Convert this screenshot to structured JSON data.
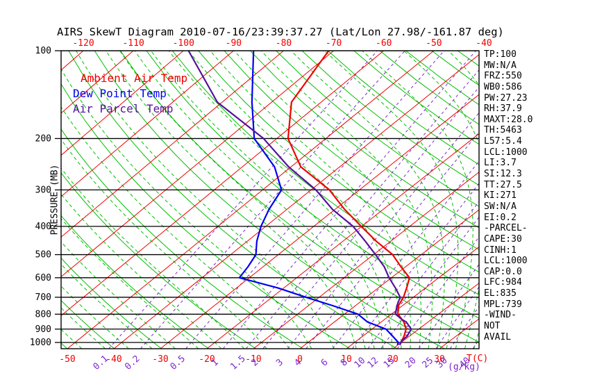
{
  "title": "AIRS SkewT Diagram 2010-07-16/23:39:37.27 (Lat/Lon 27.98/-161.87 deg)",
  "legend": [
    {
      "label": "Ambient Air Temp",
      "color": "#f00000"
    },
    {
      "label": "Dew Point Temp",
      "color": "#0000f0"
    },
    {
      "label": "Air Parcel Temp",
      "color": "#55129b"
    }
  ],
  "axes": {
    "pressure_label": "PRESSURE (MB)",
    "temp_unit": "T(C)",
    "mixing_unit": "(g/kg)",
    "pressure_ticks": [
      100,
      200,
      300,
      400,
      500,
      600,
      700,
      800,
      900,
      1000
    ],
    "top_temp_ticks": [
      -120,
      -110,
      -100,
      -90,
      -80,
      -70,
      -60,
      -50,
      -40
    ],
    "bottom_temp_ticks": [
      -50,
      -40,
      -30,
      -20,
      -10,
      0,
      10,
      20,
      30
    ],
    "mixing_ratio_labels": [
      "0.1",
      "0.2",
      "0.5",
      "1",
      "1.5",
      "2",
      "3",
      "4",
      "6",
      "8",
      "10",
      "12",
      "15",
      "20",
      "25",
      "30",
      "40"
    ]
  },
  "indices": [
    "TP:100",
    "MW:N/A",
    "FRZ:550",
    "WB0:586",
    "PW:27.23",
    "RH:37.9",
    "MAXT:28.0",
    "TH:5463",
    "L57:5.4",
    "LCL:1000",
    "LI:3.7",
    "SI:12.3",
    "TT:27.5",
    "KI:271",
    "SW:N/A",
    "EI:0.2",
    "-PARCEL-",
    "CAPE:30",
    "CINH:1",
    "LCL:1000",
    "CAP:0.0",
    "LFC:984",
    "EL:835",
    "MPL:739",
    "-WIND-",
    "NOT",
    "AVAIL"
  ],
  "chart_data": {
    "type": "line",
    "title": "AIRS SkewT Diagram 2010-07-16/23:39:37.27 (Lat/Lon 27.98/-161.87 deg)",
    "xlabel": "T(C)",
    "ylabel": "PRESSURE (MB)",
    "y_scale": "log-pressure, inverted (skew-T)",
    "y_range_mb": [
      100,
      1050
    ],
    "x_bottom_range_c": [
      -50,
      30
    ],
    "x_top_range_c": [
      -120,
      -40
    ],
    "isotherm_step_c": 10,
    "dry_adiabats_theta_k": {
      "min": 220,
      "max": 450,
      "step": 10
    },
    "moist_adiabats_thetaw_c": [
      -50,
      -45,
      -40,
      -35,
      -30,
      -25,
      -20,
      -15,
      -10,
      -5,
      0,
      5,
      10,
      12,
      14,
      16,
      18,
      20,
      22,
      24,
      26,
      28,
      30,
      32,
      34,
      36
    ],
    "mixing_ratio_lines_gkg": [
      0.1,
      0.2,
      0.5,
      1,
      1.5,
      2,
      3,
      4,
      6,
      8,
      10,
      12,
      15,
      20,
      25,
      30,
      40
    ],
    "series": [
      {
        "name": "Ambient Air Temp",
        "color": "#f00000",
        "points": [
          [
            100,
            -71
          ],
          [
            150,
            -66
          ],
          [
            200,
            -57.7
          ],
          [
            250,
            -48
          ],
          [
            300,
            -36.2
          ],
          [
            350,
            -28
          ],
          [
            400,
            -20.1
          ],
          [
            450,
            -13
          ],
          [
            500,
            -6
          ],
          [
            550,
            -1
          ],
          [
            600,
            3.8
          ],
          [
            650,
            6
          ],
          [
            700,
            7.9
          ],
          [
            750,
            9.2
          ],
          [
            800,
            11.4
          ],
          [
            850,
            14.8
          ],
          [
            900,
            17.3
          ],
          [
            950,
            18.8
          ],
          [
            1000,
            20
          ],
          [
            1020,
            20.4
          ]
        ]
      },
      {
        "name": "Dew Point Temp",
        "color": "#0000f0",
        "points": [
          [
            100,
            -86
          ],
          [
            150,
            -74
          ],
          [
            200,
            -64.6
          ],
          [
            250,
            -53.4
          ],
          [
            300,
            -46.1
          ],
          [
            350,
            -43.7
          ],
          [
            400,
            -41
          ],
          [
            450,
            -38
          ],
          [
            500,
            -34.7
          ],
          [
            550,
            -33.2
          ],
          [
            600,
            -32.1
          ],
          [
            650,
            -21.3
          ],
          [
            700,
            -12.8
          ],
          [
            750,
            -4.5
          ],
          [
            800,
            2.9
          ],
          [
            850,
            7
          ],
          [
            900,
            13
          ],
          [
            950,
            16.3
          ],
          [
            1000,
            19.4
          ],
          [
            1020,
            19.9
          ]
        ]
      },
      {
        "name": "Air Parcel Temp",
        "color": "#55129b",
        "points": [
          [
            100,
            -99
          ],
          [
            150,
            -81
          ],
          [
            200,
            -62.7
          ],
          [
            250,
            -50.5
          ],
          [
            300,
            -39
          ],
          [
            350,
            -30.5
          ],
          [
            400,
            -21.8
          ],
          [
            450,
            -15.3
          ],
          [
            500,
            -9.6
          ],
          [
            550,
            -4.5
          ],
          [
            600,
            -0.5
          ],
          [
            650,
            3.6
          ],
          [
            700,
            7.2
          ],
          [
            750,
            8.9
          ],
          [
            800,
            10.9
          ],
          [
            835,
            13.8
          ],
          [
            850,
            15.3
          ],
          [
            900,
            18.4
          ],
          [
            950,
            19.5
          ],
          [
            984,
            19.6
          ],
          [
            1000,
            19.9
          ],
          [
            1020,
            20.4
          ]
        ]
      }
    ],
    "hatch_region": {
      "description": "CAPE area hatched between parcel and ambient curves",
      "p_top_mb": 835,
      "p_bottom_mb": 985
    }
  }
}
